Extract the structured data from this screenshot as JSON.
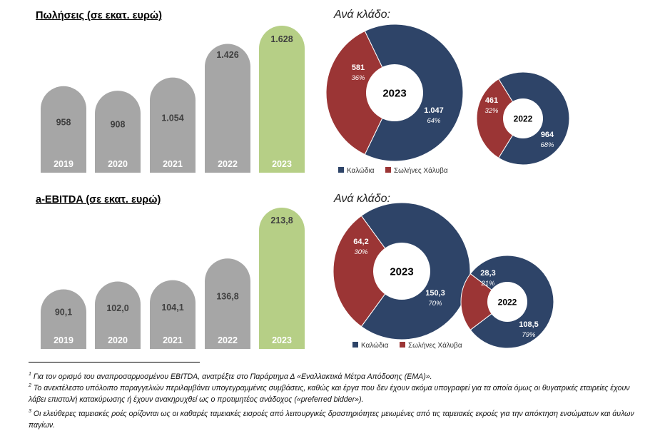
{
  "chart_data": [
    {
      "type": "bar",
      "title": "Πωλήσεις (σε εκατ. ευρώ)",
      "categories": [
        "2019",
        "2020",
        "2021",
        "2022",
        "2023"
      ],
      "values": [
        958,
        908,
        1054,
        1426,
        1628
      ],
      "value_labels": [
        "958",
        "908",
        "1.054",
        "1.426",
        "1.628"
      ],
      "highlight_color": "#b6cf86",
      "bar_color": "#a6a6a6"
    },
    {
      "type": "pie",
      "title": "Ανά κλάδο:",
      "center_label": "2023",
      "slices": [
        {
          "name": "Καλώδια",
          "value": 1047,
          "label": "1.047",
          "pct": "64%"
        },
        {
          "name": "Σωλήνες Χάλυβα",
          "value": 581,
          "label": "581",
          "pct": "36%"
        }
      ]
    },
    {
      "type": "pie",
      "center_label": "2022",
      "slices": [
        {
          "name": "Καλώδια",
          "value": 964,
          "label": "964",
          "pct": "68%"
        },
        {
          "name": "Σωλήνες Χάλυβα",
          "value": 461,
          "label": "461",
          "pct": "32%"
        }
      ]
    },
    {
      "type": "bar",
      "title": "a-EBITDA (σε εκατ. ευρώ)",
      "categories": [
        "2019",
        "2020",
        "2021",
        "2022",
        "2023"
      ],
      "values": [
        90.1,
        102.0,
        104.1,
        136.8,
        213.8
      ],
      "value_labels": [
        "90,1",
        "102,0",
        "104,1",
        "136,8",
        "213,8"
      ],
      "highlight_color": "#b6cf86",
      "bar_color": "#a6a6a6"
    },
    {
      "type": "pie",
      "title": "Ανά κλάδο:",
      "center_label": "2023",
      "slices": [
        {
          "name": "Καλώδια",
          "value": 150.3,
          "label": "150,3",
          "pct": "70%"
        },
        {
          "name": "Σωλήνες Χάλυβα",
          "value": 64.2,
          "label": "64,2",
          "pct": "30%"
        }
      ]
    },
    {
      "type": "pie",
      "center_label": "2022",
      "slices": [
        {
          "name": "Καλώδια",
          "value": 108.5,
          "label": "108,5",
          "pct": "79%"
        },
        {
          "name": "Σωλήνες Χάλυβα",
          "value": 28.3,
          "label": "28,3",
          "pct": "21%"
        }
      ]
    }
  ],
  "legend": {
    "cables": "Καλώδια",
    "steel_pipes": "Σωλήνες Χάλυβα"
  },
  "colors": {
    "cables": "#2e4468",
    "steel_pipes": "#9b3535"
  },
  "footnotes": [
    {
      "num": "1",
      "text": "Για τον ορισμό του αναπροσαρμοσμένου EBITDA, ανατρέξτε στο Παράρτημα Δ «Εναλλακτικά Μέτρα Απόδοσης (ΕΜΑ)»."
    },
    {
      "num": "2",
      "text": "Το ανεκτέλεστο υπόλοιπο παραγγελιών περιλαμβάνει υπογεγραμμένες συμβάσεις, καθώς και έργα που δεν έχουν ακόμα υπογραφεί για τα οποία όμως οι θυγατρικές εταιρείες έχουν λάβει επιστολή κατακύρωσης ή έχουν ανακηρυχθεί ως ο προτιμητέος ανάδοχος («preferred bidder»)."
    },
    {
      "num": "3",
      "text": "Οι ελεύθερες ταμειακές ροές ορίζονται ως οι καθαρές ταμειακές εισροές από λειτουργικές δραστηριότητες μειωμένες από τις ταμειακές εκροές για την απόκτηση ενσώματων και άυλων παγίων."
    }
  ]
}
